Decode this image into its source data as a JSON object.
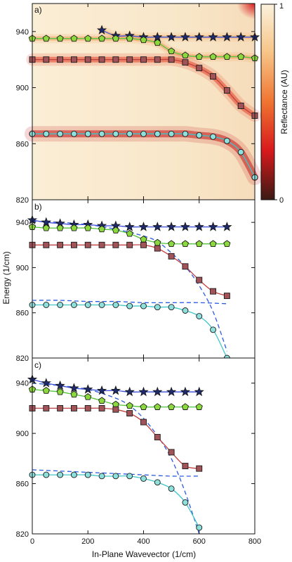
{
  "figure": {
    "xlabel": "In-Plane Wavevector (1/cm)",
    "ylabel": "Energy (1/cm)",
    "xlim": [
      0,
      800
    ],
    "ylim": [
      820,
      960
    ],
    "xticks": [
      0,
      200,
      400,
      600,
      800
    ],
    "yticks": [
      820,
      860,
      900,
      940
    ],
    "colorbar": {
      "label": "Reflectance (AU)",
      "tick_top": "1",
      "tick_bottom": "0",
      "colors": [
        "#fbf1dc",
        "#f7c486",
        "#ef7431",
        "#d7191c",
        "#3a1a14"
      ]
    },
    "colors": {
      "star": "#1e2a6e",
      "pentagon": "#8bd93c",
      "square": "#a25358",
      "circle": "#8ee0dd",
      "blue_curve": "#3a4ed8",
      "green_curve": "#54c43a",
      "red_curve": "#c24040",
      "cyan_curve": "#3fc4c8",
      "dashed": "#2a5be0"
    }
  },
  "chart_data": [
    {
      "type": "heatmap",
      "panel_label": "a)",
      "grid": false,
      "xlim": [
        0,
        800
      ],
      "ylim": [
        820,
        960
      ],
      "series": [
        {
          "marker": "star",
          "x": [
            250,
            300,
            350,
            400,
            450,
            500,
            550,
            600,
            650,
            700,
            750,
            800
          ],
          "y": [
            941,
            937,
            937,
            936,
            936,
            936,
            936,
            936,
            936,
            936,
            936,
            936
          ]
        },
        {
          "marker": "pentagon",
          "x": [
            0,
            50,
            100,
            150,
            200,
            250,
            300,
            350,
            400,
            450,
            500,
            550,
            600,
            650,
            700,
            750,
            800
          ],
          "y": [
            935,
            935,
            935,
            935,
            935,
            935,
            935,
            935,
            934,
            932,
            926,
            923,
            922,
            922,
            922,
            922,
            921
          ]
        },
        {
          "marker": "square",
          "x": [
            0,
            50,
            100,
            150,
            200,
            250,
            300,
            350,
            400,
            450,
            500,
            550,
            600,
            650,
            700,
            750,
            800
          ],
          "y": [
            920,
            920,
            920,
            920,
            920,
            920,
            920,
            920,
            920,
            920,
            920,
            918,
            914,
            908,
            898,
            887,
            880
          ]
        },
        {
          "marker": "circle",
          "x": [
            0,
            50,
            100,
            150,
            200,
            250,
            300,
            350,
            400,
            450,
            500,
            550,
            600,
            650,
            700,
            750,
            800
          ],
          "y": [
            867,
            867,
            867,
            867,
            867,
            867,
            867,
            867,
            867,
            867,
            867,
            867,
            866,
            865,
            862,
            854,
            836
          ]
        }
      ]
    },
    {
      "type": "scatter",
      "panel_label": "b)",
      "xlim": [
        0,
        800
      ],
      "ylim": [
        820,
        960
      ],
      "series": [
        {
          "marker": "star",
          "x": [
            0,
            50,
            100,
            150,
            200,
            250,
            300,
            350,
            400,
            450,
            500,
            550,
            600,
            650,
            700
          ],
          "y": [
            942,
            940,
            939,
            938,
            938,
            937,
            937,
            936,
            936,
            936,
            936,
            936,
            936,
            936,
            936
          ]
        },
        {
          "marker": "pentagon",
          "x": [
            0,
            50,
            100,
            150,
            200,
            250,
            300,
            350,
            400,
            450,
            500,
            550,
            600,
            650,
            700
          ],
          "y": [
            936,
            935,
            935,
            935,
            935,
            934,
            933,
            930,
            925,
            922,
            921,
            921,
            921,
            921,
            921
          ]
        },
        {
          "marker": "square",
          "x": [
            0,
            50,
            100,
            150,
            200,
            250,
            300,
            350,
            400,
            450,
            500,
            550,
            600,
            650,
            700
          ],
          "y": [
            920,
            920,
            920,
            920,
            920,
            920,
            920,
            920,
            920,
            917,
            910,
            901,
            889,
            879,
            875
          ]
        },
        {
          "marker": "circle",
          "x": [
            0,
            50,
            100,
            150,
            200,
            250,
            300,
            350,
            400,
            450,
            500,
            550,
            600,
            650,
            700
          ],
          "y": [
            867,
            867,
            867,
            867,
            867,
            867,
            867,
            866,
            866,
            865,
            865,
            862,
            857,
            845,
            820
          ]
        }
      ],
      "dashed_curves": [
        {
          "x": [
            0,
            100,
            200,
            300,
            400,
            500,
            600,
            700
          ],
          "y": [
            871,
            871,
            870,
            870,
            869,
            869,
            869,
            868
          ]
        },
        {
          "x": [
            0,
            100,
            200,
            300,
            400,
            450,
            500,
            550,
            600,
            650,
            700
          ],
          "y": [
            941,
            940,
            938,
            934,
            928,
            923,
            913,
            901,
            884,
            861,
            826
          ]
        }
      ]
    },
    {
      "type": "scatter",
      "panel_label": "c)",
      "xlim": [
        0,
        800
      ],
      "ylim": [
        820,
        960
      ],
      "series": [
        {
          "marker": "star",
          "x": [
            0,
            50,
            100,
            150,
            200,
            250,
            300,
            350,
            400,
            450,
            500,
            550,
            600
          ],
          "y": [
            943,
            940,
            938,
            936,
            935,
            934,
            934,
            933,
            933,
            933,
            933,
            933,
            933
          ]
        },
        {
          "marker": "pentagon",
          "x": [
            0,
            50,
            100,
            150,
            200,
            250,
            300,
            350,
            400,
            450,
            500,
            550,
            600
          ],
          "y": [
            935,
            934,
            933,
            931,
            929,
            926,
            923,
            922,
            921,
            921,
            921,
            921,
            921
          ]
        },
        {
          "marker": "square",
          "x": [
            0,
            50,
            100,
            150,
            200,
            250,
            300,
            350,
            400,
            450,
            500,
            550,
            600
          ],
          "y": [
            920,
            920,
            920,
            920,
            920,
            920,
            919,
            916,
            909,
            897,
            885,
            874,
            872
          ]
        },
        {
          "marker": "circle",
          "x": [
            0,
            50,
            100,
            150,
            200,
            250,
            300,
            350,
            400,
            450,
            500,
            550,
            600
          ],
          "y": [
            867,
            867,
            867,
            867,
            867,
            866,
            866,
            866,
            864,
            861,
            856,
            845,
            825
          ]
        }
      ],
      "dashed_curves": [
        {
          "x": [
            0,
            100,
            200,
            300,
            400,
            500,
            600
          ],
          "y": [
            871,
            870,
            869,
            868,
            867,
            866,
            866
          ]
        },
        {
          "x": [
            0,
            100,
            200,
            300,
            350,
            400,
            450,
            500,
            550,
            600
          ],
          "y": [
            940,
            938,
            935,
            928,
            922,
            912,
            898,
            880,
            853,
            820
          ]
        }
      ]
    }
  ]
}
